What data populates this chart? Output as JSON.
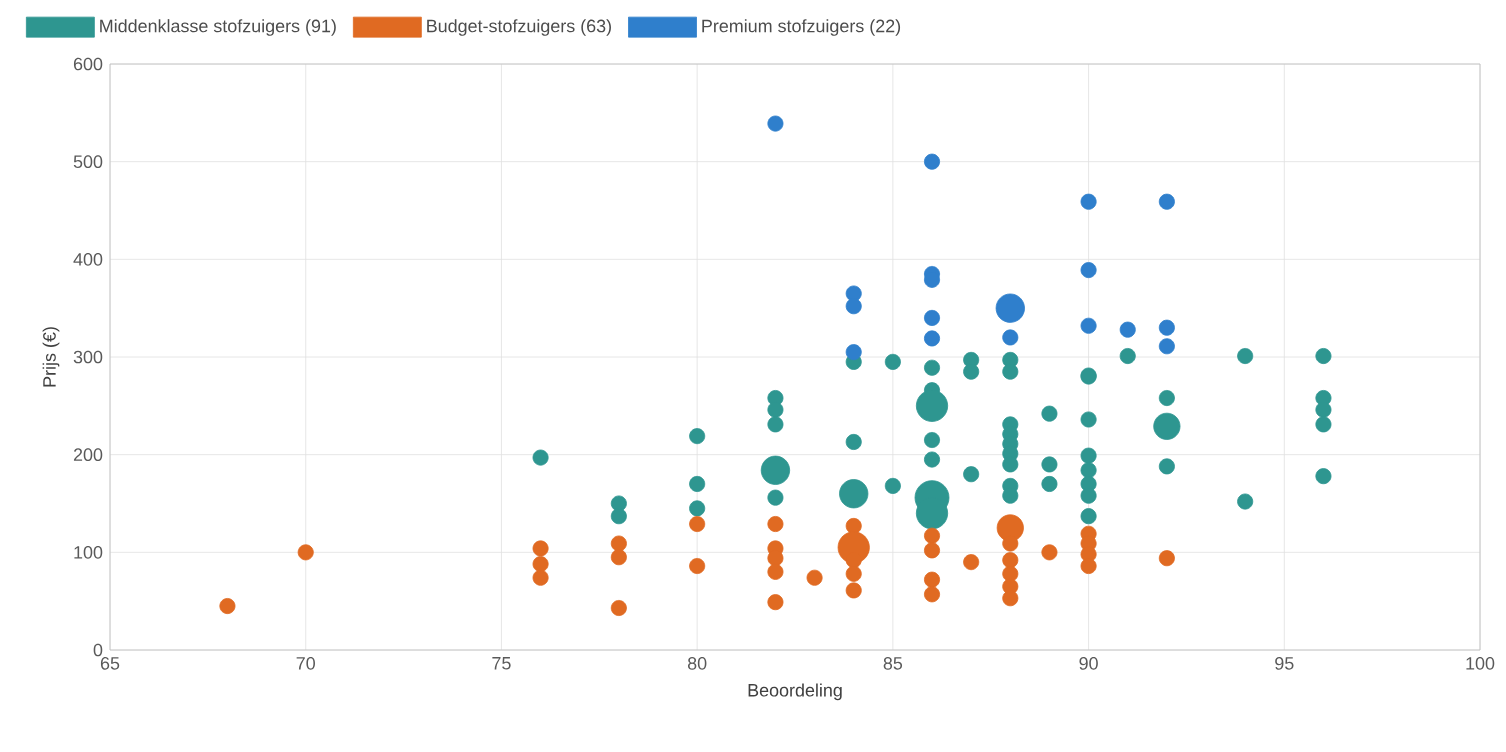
{
  "chart_data": {
    "type": "bubble",
    "xlabel": "Beoordeling",
    "ylabel": "Prijs (€)",
    "xlim": [
      65,
      100
    ],
    "xticks": [
      65,
      70,
      75,
      80,
      85,
      90,
      95,
      100
    ],
    "ylim": [
      0,
      600
    ],
    "yticks": [
      0,
      100,
      200,
      300,
      400,
      500,
      600
    ],
    "grid": true,
    "legend": "top",
    "marker": "circle",
    "series": [
      {
        "name": "Middenklasse stofzuigers (91)",
        "color": "#2e9690",
        "x": [
          76,
          78,
          78,
          80,
          80,
          80,
          82,
          82,
          82,
          82,
          82,
          84,
          84,
          84,
          85,
          85,
          86,
          86,
          86,
          86,
          86,
          86,
          86,
          87,
          87,
          87,
          88,
          88,
          88,
          88,
          88,
          88,
          88,
          88,
          88,
          89,
          89,
          89,
          90,
          90,
          90,
          90,
          90,
          90,
          90,
          90,
          91,
          92,
          92,
          92,
          94,
          94,
          96,
          96,
          96,
          96,
          96
        ],
        "values": [
          197,
          150,
          137,
          219,
          170,
          145,
          258,
          246,
          231,
          184,
          156,
          295,
          213,
          160,
          295,
          168,
          289,
          266,
          250,
          215,
          195,
          156,
          140,
          297,
          285,
          180,
          297,
          285,
          231,
          221,
          211,
          201,
          190,
          168,
          158,
          242,
          190,
          170,
          281,
          280,
          236,
          199,
          184,
          170,
          158,
          137,
          301,
          258,
          229,
          188,
          301,
          152,
          301,
          258,
          246,
          231,
          178
        ],
        "sizes": [
          0.2,
          0.2,
          0.2,
          0.2,
          0.2,
          0.2,
          0.2,
          0.2,
          0.2,
          0.7,
          0.2,
          0.2,
          0.2,
          0.7,
          0.2,
          0.2,
          0.2,
          0.2,
          0.85,
          0.2,
          0.2,
          1,
          0.85,
          0.2,
          0.2,
          0.2,
          0.2,
          0.2,
          0.2,
          0.2,
          0.2,
          0.2,
          0.2,
          0.2,
          0.2,
          0.2,
          0.2,
          0.2,
          0.2,
          0.2,
          0.2,
          0.2,
          0.2,
          0.2,
          0.2,
          0.2,
          0.2,
          0.2,
          0.6,
          0.2,
          0.2,
          0.2,
          0.2,
          0.2,
          0.2,
          0.2,
          0.2
        ]
      },
      {
        "name": "Budget-stofzuigers (63)",
        "color": "#e06a22",
        "x": [
          68,
          70,
          76,
          76,
          76,
          78,
          78,
          78,
          80,
          80,
          82,
          82,
          82,
          82,
          82,
          83,
          84,
          84,
          84,
          84,
          84,
          86,
          86,
          86,
          86,
          87,
          88,
          88,
          88,
          88,
          88,
          88,
          89,
          90,
          90,
          90,
          90,
          92
        ],
        "values": [
          45,
          100,
          104,
          88,
          74,
          109,
          95,
          43,
          129,
          86,
          129,
          104,
          94,
          80,
          49,
          74,
          127,
          105,
          92,
          78,
          61,
          117,
          102,
          72,
          57,
          90,
          125,
          109,
          92,
          78,
          65,
          53,
          100,
          119,
          109,
          98,
          86,
          94
        ],
        "sizes": [
          0.2,
          0.2,
          0.2,
          0.2,
          0.2,
          0.2,
          0.2,
          0.2,
          0.2,
          0.2,
          0.2,
          0.2,
          0.2,
          0.2,
          0.2,
          0.2,
          0.2,
          0.85,
          0.2,
          0.2,
          0.2,
          0.2,
          0.2,
          0.2,
          0.2,
          0.2,
          0.6,
          0.2,
          0.2,
          0.2,
          0.2,
          0.2,
          0.2,
          0.2,
          0.2,
          0.2,
          0.2,
          0.2
        ]
      },
      {
        "name": "Premium stofzuigers (22)",
        "color": "#2f7fcc",
        "x": [
          82,
          84,
          84,
          84,
          86,
          86,
          86,
          86,
          86,
          88,
          88,
          90,
          90,
          90,
          91,
          92,
          92,
          92
        ],
        "values": [
          539,
          365,
          352,
          305,
          500,
          385,
          379,
          340,
          319,
          350,
          320,
          459,
          389,
          332,
          328,
          459,
          330,
          311
        ],
        "sizes": [
          0.2,
          0.2,
          0.2,
          0.2,
          0.2,
          0.2,
          0.2,
          0.2,
          0.2,
          0.7,
          0.2,
          0.2,
          0.2,
          0.2,
          0.2,
          0.2,
          0.2,
          0.2
        ]
      }
    ]
  }
}
